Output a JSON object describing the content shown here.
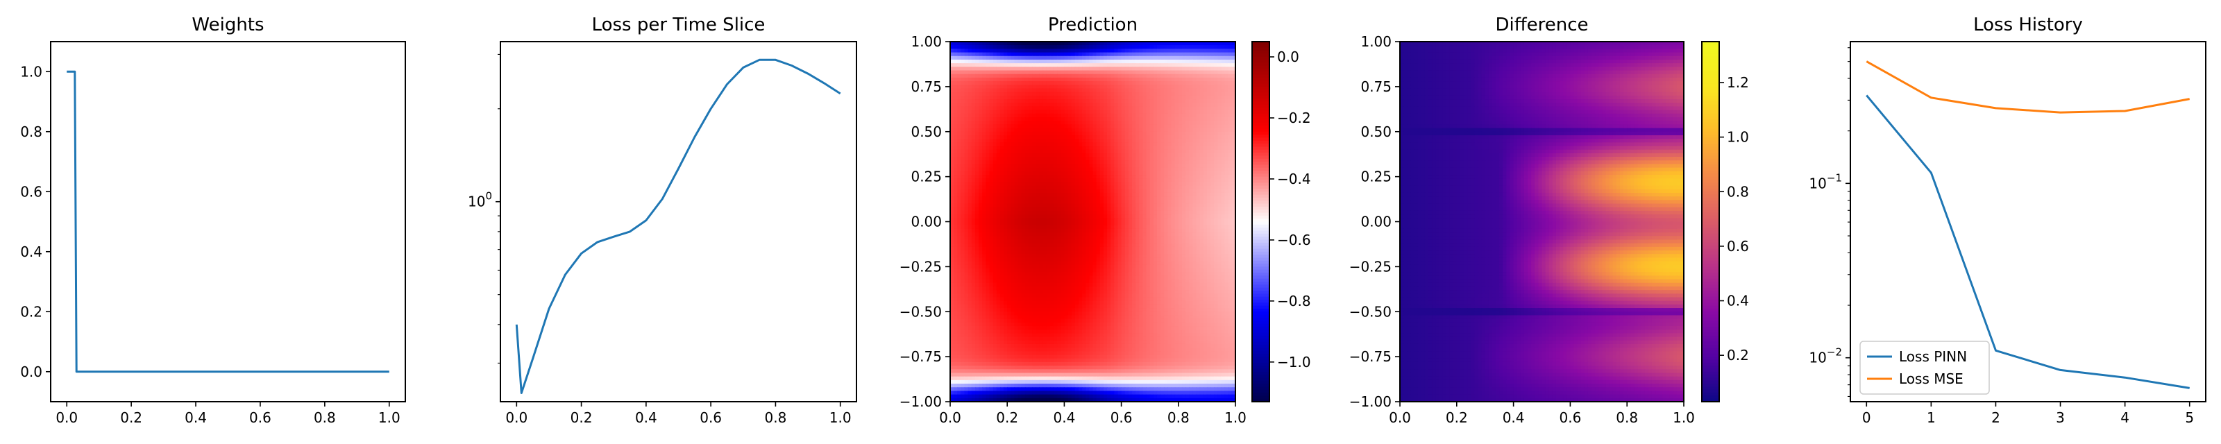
{
  "chart_data": [
    {
      "type": "line",
      "title": "Weights",
      "xlim": [
        -0.05,
        1.05
      ],
      "ylim": [
        -0.1,
        1.1
      ],
      "xticks": [
        0.0,
        0.2,
        0.4,
        0.6,
        0.8,
        1.0
      ],
      "xtick_labels": [
        "0.0",
        "0.2",
        "0.4",
        "0.6",
        "0.8",
        "1.0"
      ],
      "yticks": [
        0.0,
        0.2,
        0.4,
        0.6,
        0.8,
        1.0
      ],
      "ytick_labels": [
        "0.0",
        "0.2",
        "0.4",
        "0.6",
        "0.8",
        "1.0"
      ],
      "series": [
        {
          "color": "#1f77b4",
          "x": [
            0.0,
            0.025,
            0.03,
            1.0
          ],
          "y": [
            1.0,
            1.0,
            0.0,
            0.0
          ]
        }
      ]
    },
    {
      "type": "line",
      "title": "Loss per Time Slice",
      "yscale": "log",
      "xlim": [
        -0.05,
        1.05
      ],
      "ylim": [
        0.225,
        3.3
      ],
      "xticks": [
        0.0,
        0.2,
        0.4,
        0.6,
        0.8,
        1.0
      ],
      "xtick_labels": [
        "0.0",
        "0.2",
        "0.4",
        "0.6",
        "0.8",
        "1.0"
      ],
      "yticks": [
        1.0
      ],
      "ytick_labels": [
        "10^0"
      ],
      "series": [
        {
          "color": "#1f77b4",
          "x": [
            0.0,
            0.015,
            0.05,
            0.1,
            0.15,
            0.2,
            0.25,
            0.3,
            0.35,
            0.4,
            0.45,
            0.5,
            0.55,
            0.6,
            0.65,
            0.7,
            0.75,
            0.8,
            0.85,
            0.9,
            0.95,
            1.0
          ],
          "y": [
            0.4,
            0.24,
            0.31,
            0.45,
            0.58,
            0.68,
            0.74,
            0.77,
            0.8,
            0.87,
            1.02,
            1.28,
            1.62,
            2.0,
            2.4,
            2.72,
            2.88,
            2.88,
            2.76,
            2.6,
            2.42,
            2.24
          ]
        }
      ]
    },
    {
      "type": "heatmap",
      "title": "Prediction",
      "xlim": [
        0.0,
        1.0
      ],
      "ylim": [
        -1.0,
        1.0
      ],
      "xticks": [
        0.0,
        0.2,
        0.4,
        0.6,
        0.8,
        1.0
      ],
      "xtick_labels": [
        "0.0",
        "0.2",
        "0.4",
        "0.6",
        "0.8",
        "1.0"
      ],
      "yticks": [
        -1.0,
        -0.75,
        -0.5,
        -0.25,
        0.0,
        0.25,
        0.5,
        0.75,
        1.0
      ],
      "ytick_labels": [
        "−1.00",
        "−0.75",
        "−0.50",
        "−0.25",
        "0.00",
        "0.25",
        "0.50",
        "0.75",
        "1.00"
      ],
      "colormap": "seismic",
      "vmin": -1.13,
      "vmax": 0.05,
      "colorbar_ticks": [
        -1.0,
        -0.8,
        -0.6,
        -0.4,
        -0.2,
        0.0
      ],
      "colorbar_tick_labels": [
        "−1.0",
        "−0.8",
        "−0.6",
        "−0.4",
        "−0.2",
        "0.0"
      ]
    },
    {
      "type": "heatmap",
      "title": "Difference",
      "xlim": [
        0.0,
        1.0
      ],
      "ylim": [
        -1.0,
        1.0
      ],
      "xticks": [
        0.0,
        0.2,
        0.4,
        0.6,
        0.8,
        1.0
      ],
      "xtick_labels": [
        "0.0",
        "0.2",
        "0.4",
        "0.6",
        "0.8",
        "1.0"
      ],
      "yticks": [
        -1.0,
        -0.75,
        -0.5,
        -0.25,
        0.0,
        0.25,
        0.5,
        0.75,
        1.0
      ],
      "ytick_labels": [
        "−1.00",
        "−0.75",
        "−0.50",
        "−0.25",
        "0.00",
        "0.25",
        "0.50",
        "0.75",
        "1.00"
      ],
      "colormap": "plasma",
      "vmin": 0.03,
      "vmax": 1.35,
      "colorbar_ticks": [
        0.2,
        0.4,
        0.6,
        0.8,
        1.0,
        1.2
      ],
      "colorbar_tick_labels": [
        "0.2",
        "0.4",
        "0.6",
        "0.8",
        "1.0",
        "1.2"
      ]
    },
    {
      "type": "line",
      "title": "Loss History",
      "yscale": "log",
      "xlim": [
        -0.25,
        5.25
      ],
      "ylim": [
        0.0056,
        0.65
      ],
      "xticks": [
        0,
        1,
        2,
        3,
        4,
        5
      ],
      "xtick_labels": [
        "0",
        "1",
        "2",
        "3",
        "4",
        "5"
      ],
      "yticks": [
        0.01,
        0.1
      ],
      "ytick_labels": [
        "10^-2",
        "10^-1"
      ],
      "legend": "lower-left",
      "series": [
        {
          "name": "Loss PINN",
          "color": "#1f77b4",
          "x": [
            0,
            1,
            2,
            3,
            4,
            5
          ],
          "y": [
            0.32,
            0.115,
            0.011,
            0.0085,
            0.0077,
            0.0067
          ]
        },
        {
          "name": "Loss MSE",
          "color": "#ff7f0e",
          "x": [
            0,
            1,
            2,
            3,
            4,
            5
          ],
          "y": [
            0.5,
            0.31,
            0.27,
            0.255,
            0.26,
            0.305
          ]
        }
      ]
    }
  ]
}
